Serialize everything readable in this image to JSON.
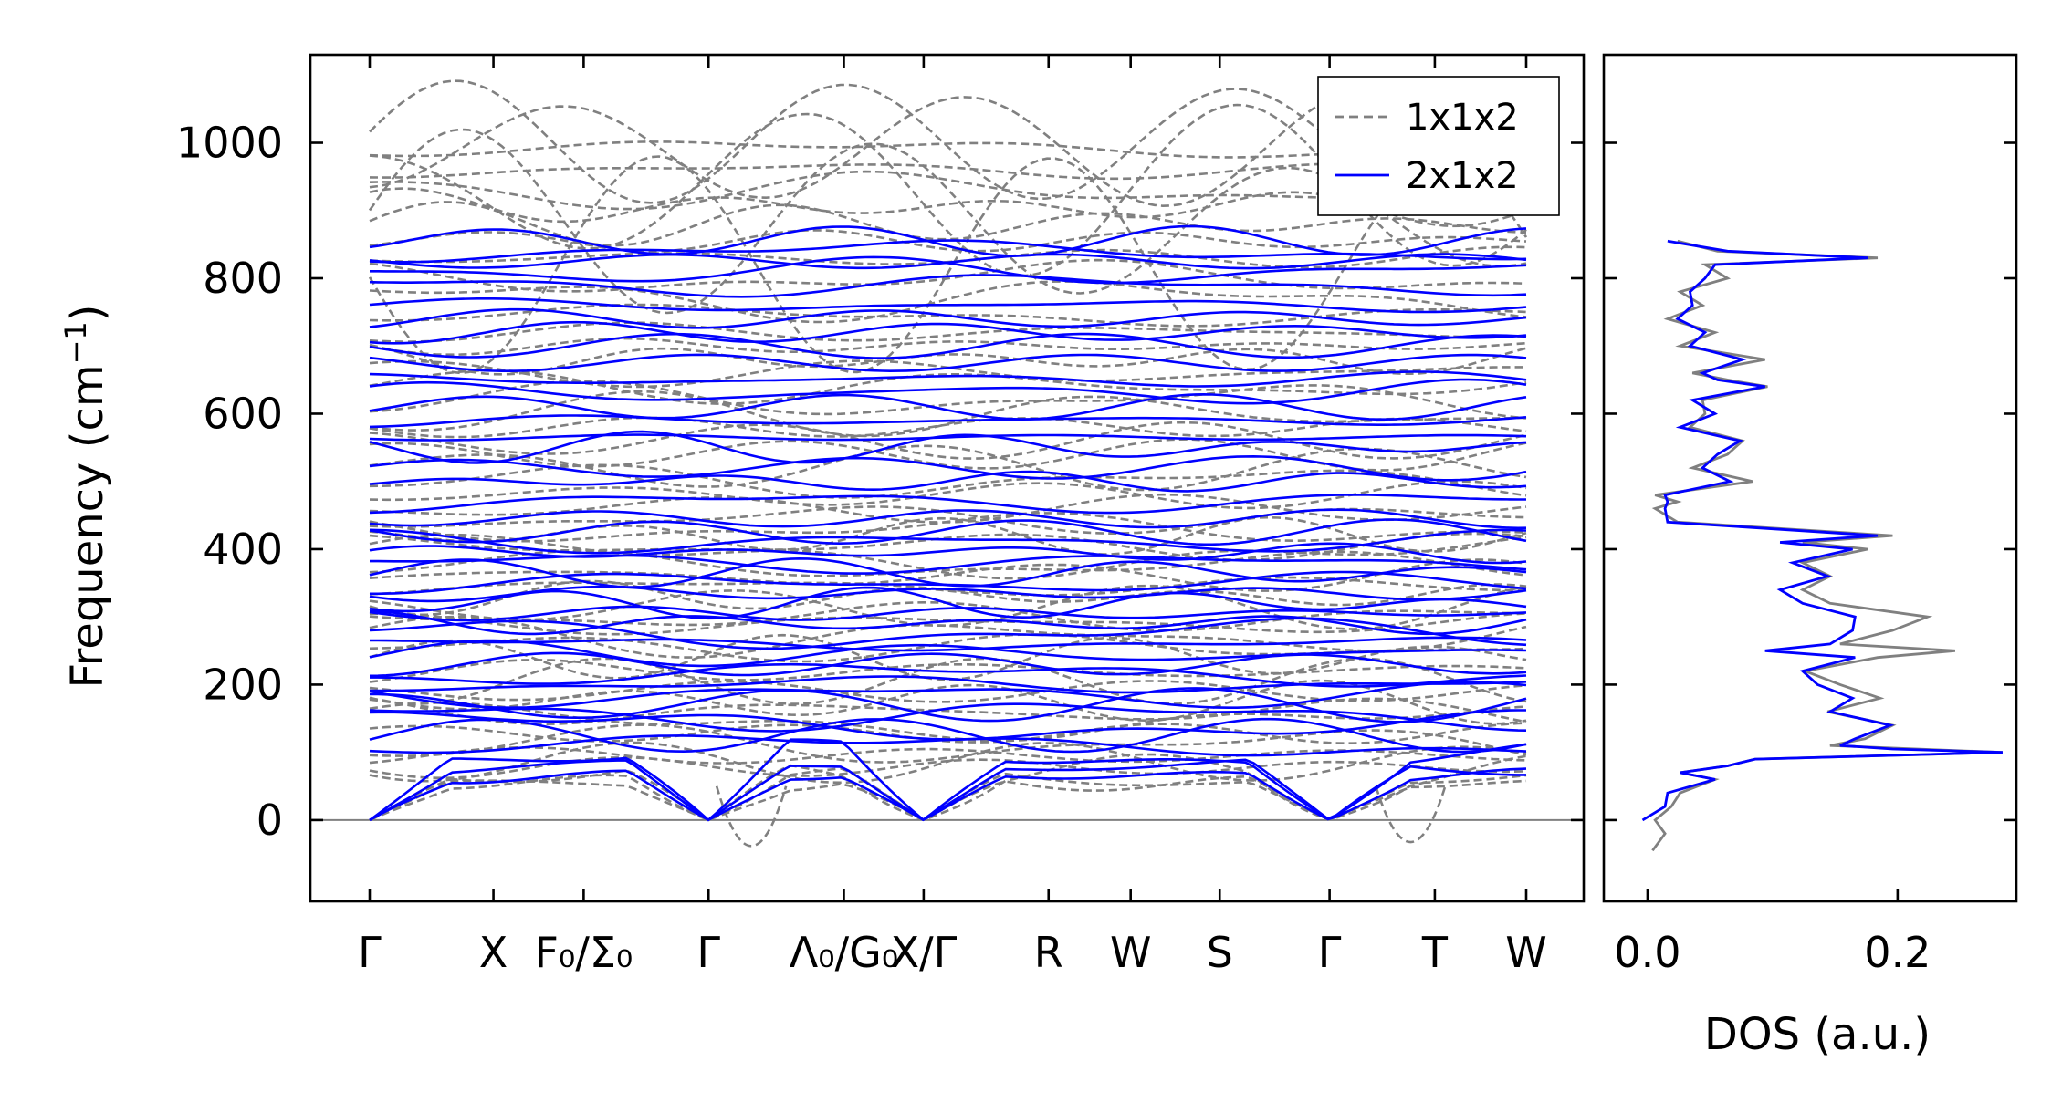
{
  "chart_data": [
    {
      "type": "line",
      "title": "",
      "xlabel": "",
      "ylabel": "Frequency (cm",
      "ylabel_superscript": "−1",
      "ylabel_suffix": ")",
      "ylim": [
        -120,
        1130
      ],
      "yticks": [
        0,
        200,
        400,
        600,
        800,
        1000
      ],
      "x_ticks": [
        {
          "label": "Γ",
          "pos": 0.0
        },
        {
          "label": "X",
          "pos": 0.107
        },
        {
          "label": "F₀/Σ₀",
          "pos": 0.185
        },
        {
          "label": "Γ",
          "pos": 0.293
        },
        {
          "label": "Λ₀/G₀",
          "pos": 0.41
        },
        {
          "label": "X/Γ",
          "pos": 0.479
        },
        {
          "label": "R",
          "pos": 0.587
        },
        {
          "label": "W",
          "pos": 0.658
        },
        {
          "label": "S",
          "pos": 0.735
        },
        {
          "label": "Γ",
          "pos": 0.83
        },
        {
          "label": "T",
          "pos": 0.921
        },
        {
          "label": "W",
          "pos": 1.0
        }
      ],
      "break_at": 0.479,
      "zero_line": 0,
      "legend": {
        "placement": "top-right",
        "entries": [
          {
            "name": "1x1x2",
            "style": "dashed",
            "color": "#808080"
          },
          {
            "name": "2x1x2",
            "style": "solid",
            "color": "#0000ff"
          }
        ]
      },
      "series": [
        {
          "name": "1x1x2",
          "approx_flat_frequencies": [
            55,
            62,
            70,
            78,
            85,
            95,
            110,
            128,
            145,
            160,
            175,
            190,
            205,
            220,
            240,
            255,
            270,
            290,
            300,
            315,
            330,
            345,
            360,
            375,
            390,
            405,
            420,
            430,
            445,
            460,
            480,
            500,
            520,
            540,
            560,
            580,
            600,
            620,
            640,
            660,
            680,
            700,
            720,
            745,
            770,
            800,
            830,
            855,
            880,
            905,
            930,
            960,
            990
          ],
          "imaginary_min_frequency": -55,
          "max_frequency": 1080
        },
        {
          "name": "2x1x2",
          "approx_flat_frequencies": [
            65,
            80,
            95,
            110,
            125,
            140,
            155,
            170,
            185,
            200,
            215,
            230,
            245,
            260,
            275,
            290,
            305,
            320,
            335,
            350,
            365,
            380,
            395,
            410,
            425,
            445,
            470,
            500,
            520,
            550,
            565,
            590,
            610,
            630,
            650,
            675,
            700,
            720,
            740,
            760,
            790,
            810,
            825,
            840,
            855
          ],
          "acoustic_zero_at": [
            "Γ",
            "Γ",
            "X/Γ",
            "Γ"
          ],
          "max_frequency": 860
        }
      ]
    },
    {
      "type": "line",
      "title": "",
      "xlabel": "DOS (a.u.)",
      "ylabel": "",
      "xlim": [
        -0.035,
        0.295
      ],
      "xticks": [
        0.0,
        0.2
      ],
      "xtick_labels": [
        "0.0",
        "0.2"
      ],
      "ylim": [
        -120,
        1130
      ],
      "series": [
        {
          "name": "1x1x2",
          "color": "#808080",
          "freq": [
            -45,
            -20,
            0,
            20,
            40,
            60,
            70,
            80,
            90,
            100,
            110,
            120,
            140,
            160,
            180,
            200,
            220,
            240,
            250,
            260,
            280,
            300,
            320,
            340,
            360,
            380,
            400,
            410,
            420,
            440,
            460,
            470,
            480,
            500,
            520,
            540,
            560,
            580,
            600,
            620,
            640,
            650,
            660,
            680,
            700,
            720,
            740,
            760,
            780,
            800,
            820,
            830,
            840,
            855
          ],
          "dos": [
            0.008,
            0.01,
            0.01,
            0.015,
            0.03,
            0.05,
            0.03,
            0.06,
            0.09,
            0.28,
            0.15,
            0.17,
            0.2,
            0.14,
            0.19,
            0.15,
            0.13,
            0.18,
            0.25,
            0.15,
            0.2,
            0.22,
            0.15,
            0.12,
            0.15,
            0.12,
            0.18,
            0.12,
            0.2,
            0.02,
            0.01,
            0.02,
            0.01,
            0.08,
            0.04,
            0.06,
            0.08,
            0.03,
            0.05,
            0.04,
            0.1,
            0.06,
            0.04,
            0.09,
            0.03,
            0.05,
            0.02,
            0.04,
            0.03,
            0.06,
            0.05,
            0.18,
            0.06,
            0.02
          ]
        },
        {
          "name": "2x1x2",
          "color": "#0000ff",
          "freq": [
            0,
            20,
            40,
            60,
            70,
            80,
            90,
            100,
            105,
            110,
            120,
            140,
            160,
            180,
            200,
            220,
            240,
            250,
            260,
            280,
            300,
            320,
            340,
            360,
            380,
            400,
            410,
            420,
            440,
            460,
            470,
            480,
            500,
            520,
            540,
            560,
            580,
            600,
            620,
            640,
            650,
            660,
            680,
            700,
            720,
            740,
            760,
            780,
            800,
            820,
            830,
            840,
            855
          ],
          "dos": [
            0.0,
            0.01,
            0.02,
            0.05,
            0.03,
            0.06,
            0.09,
            0.28,
            0.2,
            0.15,
            0.17,
            0.19,
            0.15,
            0.16,
            0.14,
            0.12,
            0.17,
            0.09,
            0.15,
            0.16,
            0.17,
            0.12,
            0.11,
            0.14,
            0.12,
            0.16,
            0.11,
            0.18,
            0.02,
            0.01,
            0.02,
            0.01,
            0.07,
            0.04,
            0.06,
            0.07,
            0.03,
            0.05,
            0.04,
            0.09,
            0.06,
            0.04,
            0.08,
            0.03,
            0.05,
            0.02,
            0.04,
            0.03,
            0.05,
            0.05,
            0.18,
            0.06,
            0.02
          ]
        }
      ]
    }
  ]
}
